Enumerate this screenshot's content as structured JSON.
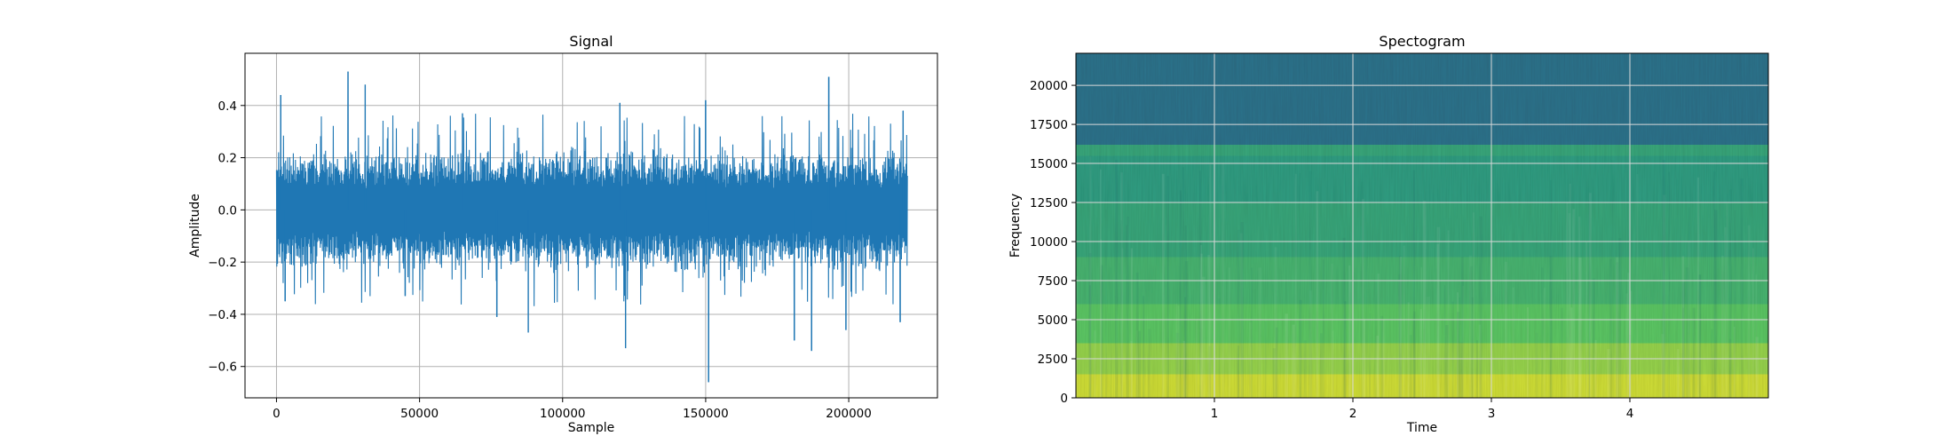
{
  "chart_data": [
    {
      "type": "line",
      "title": "Signal",
      "xlabel": "Sample",
      "ylabel": "Amplitude",
      "xlim": [
        -11000,
        231000
      ],
      "ylim": [
        -0.72,
        0.6
      ],
      "xticks": [
        0,
        50000,
        100000,
        150000,
        200000
      ],
      "yticks": [
        -0.6,
        -0.4,
        -0.2,
        0.0,
        0.2,
        0.4
      ],
      "grid": true,
      "color": "#1f77b4",
      "series": [
        {
          "x_range": [
            0,
            220500
          ],
          "typical_band": [
            -0.25,
            0.25
          ],
          "peaks": [
            {
              "x": 1500,
              "y": 0.44
            },
            {
              "x": 25000,
              "y": 0.53
            },
            {
              "x": 31000,
              "y": 0.48
            },
            {
              "x": 65000,
              "y": 0.37
            },
            {
              "x": 120000,
              "y": 0.41
            },
            {
              "x": 150000,
              "y": 0.42
            },
            {
              "x": 193000,
              "y": 0.51
            },
            {
              "x": 219000,
              "y": 0.38
            },
            {
              "x": 3000,
              "y": -0.35
            },
            {
              "x": 45000,
              "y": -0.33
            },
            {
              "x": 77000,
              "y": -0.41
            },
            {
              "x": 88000,
              "y": -0.47
            },
            {
              "x": 122000,
              "y": -0.53
            },
            {
              "x": 151000,
              "y": -0.66
            },
            {
              "x": 181000,
              "y": -0.5
            },
            {
              "x": 187000,
              "y": -0.54
            },
            {
              "x": 199000,
              "y": -0.46
            },
            {
              "x": 218000,
              "y": -0.43
            }
          ]
        }
      ]
    },
    {
      "type": "heatmap",
      "title": "Spectogram",
      "xlabel": "Time",
      "ylabel": "Frequency",
      "xlim": [
        0,
        5.0
      ],
      "ylim": [
        0,
        22050
      ],
      "xticks": [
        1,
        2,
        3,
        4
      ],
      "yticks": [
        0,
        2500,
        5000,
        7500,
        10000,
        12500,
        15000,
        17500,
        20000
      ],
      "grid": true,
      "colormap": "viridis",
      "bands": [
        {
          "from": 0,
          "to": 1500,
          "level": 0.93
        },
        {
          "from": 1500,
          "to": 3500,
          "level": 0.84
        },
        {
          "from": 3500,
          "to": 6000,
          "level": 0.74
        },
        {
          "from": 6000,
          "to": 9000,
          "level": 0.66
        },
        {
          "from": 9000,
          "to": 12500,
          "level": 0.6
        },
        {
          "from": 12500,
          "to": 15500,
          "level": 0.56
        },
        {
          "from": 15500,
          "to": 16200,
          "level": 0.6
        },
        {
          "from": 16200,
          "to": 22050,
          "level": 0.38
        }
      ]
    }
  ]
}
